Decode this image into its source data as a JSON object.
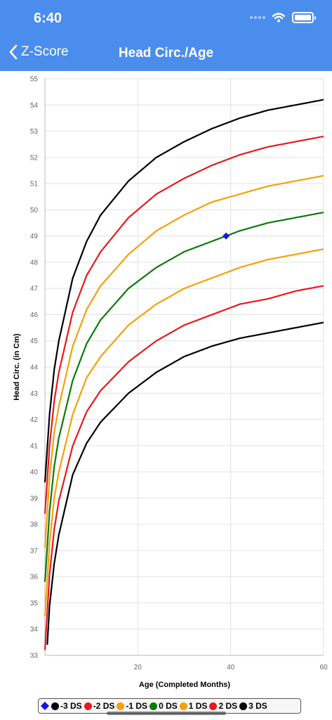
{
  "status": {
    "time": "6:40"
  },
  "nav": {
    "back_label": "Z-Score",
    "title": "Head Circ./Age"
  },
  "chart_data": {
    "type": "line",
    "xlabel": "Age (Completed Months)",
    "ylabel": "Head Circ. (in Cm)",
    "xlim": [
      0,
      60
    ],
    "ylim": [
      33,
      55
    ],
    "xticks": [
      20,
      40,
      60
    ],
    "yticks": [
      33,
      34,
      35,
      36,
      37,
      38,
      39,
      40,
      41,
      42,
      43,
      44,
      45,
      46,
      47,
      48,
      49,
      50,
      51,
      52,
      53,
      54,
      55
    ],
    "grid": true,
    "legend_position": "bottom",
    "x": [
      0,
      1,
      2,
      3,
      6,
      9,
      12,
      18,
      24,
      30,
      36,
      42,
      48,
      54,
      60
    ],
    "series": [
      {
        "name": "-3 DS",
        "color": "#000000",
        "values": [
          31.9,
          34.9,
          36.5,
          37.6,
          39.9,
          41.1,
          41.9,
          43.0,
          43.8,
          44.4,
          44.8,
          45.1,
          45.3,
          45.5,
          45.7
        ]
      },
      {
        "name": "-2 DS",
        "color": "#e8191b",
        "values": [
          33.2,
          36.1,
          37.8,
          38.9,
          41.0,
          42.3,
          43.1,
          44.2,
          45.0,
          45.6,
          46.0,
          46.4,
          46.6,
          46.9,
          47.1
        ]
      },
      {
        "name": "-1 DS",
        "color": "#f5a10a",
        "values": [
          34.5,
          37.3,
          39.0,
          40.0,
          42.2,
          43.6,
          44.4,
          45.6,
          46.4,
          47.0,
          47.4,
          47.8,
          48.1,
          48.3,
          48.5
        ]
      },
      {
        "name": "0 DS",
        "color": "#0b7a0b",
        "values": [
          35.8,
          38.5,
          40.2,
          41.3,
          43.5,
          44.9,
          45.8,
          47.0,
          47.8,
          48.4,
          48.8,
          49.2,
          49.5,
          49.7,
          49.9
        ]
      },
      {
        "name": "1 DS",
        "color": "#f5a10a",
        "values": [
          37.1,
          39.8,
          41.5,
          42.5,
          44.8,
          46.2,
          47.1,
          48.3,
          49.2,
          49.8,
          50.3,
          50.6,
          50.9,
          51.1,
          51.3
        ]
      },
      {
        "name": "2 DS",
        "color": "#e8191b",
        "values": [
          38.4,
          41.0,
          42.7,
          43.8,
          46.1,
          47.5,
          48.4,
          49.7,
          50.6,
          51.2,
          51.7,
          52.1,
          52.4,
          52.6,
          52.8
        ]
      },
      {
        "name": "3 DS",
        "color": "#000000",
        "values": [
          39.6,
          42.2,
          43.9,
          45.0,
          47.4,
          48.8,
          49.8,
          51.1,
          52.0,
          52.6,
          53.1,
          53.5,
          53.8,
          54.0,
          54.2
        ]
      }
    ],
    "point": {
      "x": 39,
      "y": 49.0,
      "color": "#1414e6",
      "shape": "diamond"
    }
  }
}
